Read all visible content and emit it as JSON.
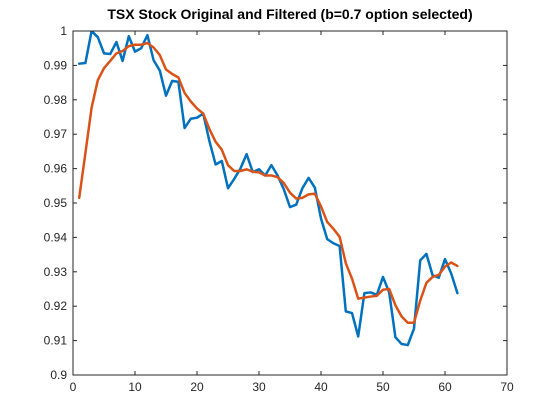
{
  "chart_data": {
    "type": "line",
    "title": "TSX Stock Original and Filtered (b=0.7 option selected)",
    "xlabel": "",
    "ylabel": "",
    "xlim": [
      0,
      70
    ],
    "ylim": [
      0.9,
      1.0
    ],
    "xticks": [
      0,
      10,
      20,
      30,
      40,
      50,
      60,
      70
    ],
    "yticks": [
      0.9,
      0.91,
      0.92,
      0.93,
      0.94,
      0.95,
      0.96,
      0.97,
      0.98,
      0.99,
      1
    ],
    "ytick_labels": [
      "0.9",
      "0.91",
      "0.92",
      "0.93",
      "0.94",
      "0.95",
      "0.96",
      "0.97",
      "0.98",
      "0.99",
      "1"
    ],
    "grid": false,
    "legend": null,
    "series": [
      {
        "name": "",
        "color": "#0072BD",
        "x": [
          1,
          2,
          3,
          4,
          5,
          6,
          7,
          8,
          9,
          10,
          11,
          12,
          13,
          14,
          15,
          16,
          17,
          18,
          19,
          20,
          21,
          22,
          23,
          24,
          25,
          26,
          27,
          28,
          29,
          30,
          31,
          32,
          33,
          34,
          35,
          36,
          37,
          38,
          39,
          40,
          41,
          42,
          43,
          44,
          45,
          46,
          47,
          48,
          49,
          50,
          51,
          52,
          53,
          54,
          55,
          56,
          57,
          58,
          59,
          60,
          61,
          62
        ],
        "values": [
          0.9905,
          0.9907,
          1.0,
          0.9982,
          0.9935,
          0.9933,
          0.9968,
          0.9913,
          0.9985,
          0.994,
          0.995,
          0.9988,
          0.9915,
          0.9885,
          0.9812,
          0.9855,
          0.9852,
          0.9718,
          0.9745,
          0.9748,
          0.976,
          0.968,
          0.9612,
          0.9622,
          0.9543,
          0.957,
          0.96,
          0.9642,
          0.959,
          0.9598,
          0.958,
          0.961,
          0.958,
          0.954,
          0.9488,
          0.9495,
          0.9543,
          0.9573,
          0.9545,
          0.9455,
          0.9395,
          0.9383,
          0.9375,
          0.9185,
          0.918,
          0.9112,
          0.9238,
          0.924,
          0.9233,
          0.9285,
          0.924,
          0.911,
          0.909,
          0.9087,
          0.9135,
          0.9333,
          0.9352,
          0.929,
          0.9283,
          0.9337,
          0.9295,
          0.9238
        ]
      },
      {
        "name": "",
        "color": "#D95319",
        "x": [
          1,
          2,
          3,
          4,
          5,
          6,
          7,
          8,
          9,
          10,
          11,
          12,
          13,
          14,
          15,
          16,
          17,
          18,
          19,
          20,
          21,
          22,
          23,
          24,
          25,
          26,
          27,
          28,
          29,
          30,
          31,
          32,
          33,
          34,
          35,
          36,
          37,
          38,
          39,
          40,
          41,
          42,
          43,
          44,
          45,
          46,
          47,
          48,
          49,
          50,
          51,
          52,
          53,
          54,
          55,
          56,
          57,
          58,
          59,
          60,
          61,
          62
        ],
        "values": [
          0.9515,
          0.9645,
          0.9777,
          0.9857,
          0.9892,
          0.9913,
          0.9935,
          0.9942,
          0.9956,
          0.996,
          0.996,
          0.9965,
          0.9952,
          0.993,
          0.9888,
          0.9875,
          0.9865,
          0.982,
          0.9795,
          0.9775,
          0.976,
          0.9715,
          0.9678,
          0.9655,
          0.961,
          0.9593,
          0.9593,
          0.9598,
          0.9591,
          0.9589,
          0.958,
          0.958,
          0.9575,
          0.9558,
          0.953,
          0.9513,
          0.9515,
          0.9525,
          0.9527,
          0.949,
          0.9445,
          0.9425,
          0.9402,
          0.9325,
          0.928,
          0.9222,
          0.9225,
          0.9228,
          0.923,
          0.9248,
          0.925,
          0.9203,
          0.917,
          0.9152,
          0.9152,
          0.9216,
          0.9268,
          0.9285,
          0.9291,
          0.9315,
          0.9327,
          0.9317
        ]
      }
    ]
  }
}
